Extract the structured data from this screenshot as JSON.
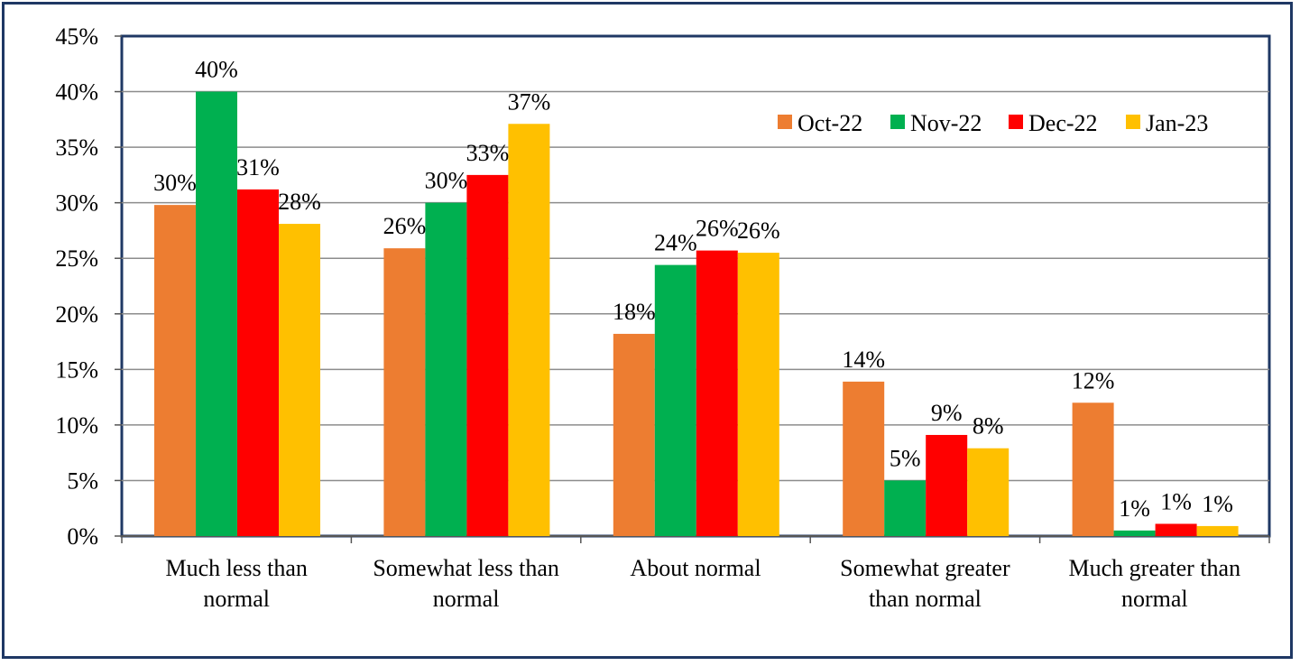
{
  "chart_data": {
    "type": "bar",
    "title": "",
    "xlabel": "",
    "ylabel": "",
    "ylim": [
      0,
      45
    ],
    "yticks": [
      "0%",
      "5%",
      "10%",
      "15%",
      "20%",
      "25%",
      "30%",
      "35%",
      "40%",
      "45%"
    ],
    "grid": true,
    "legend_position": "top-right",
    "categories": [
      [
        "Much less than",
        "normal"
      ],
      [
        "Somewhat less than",
        "normal"
      ],
      [
        "About normal"
      ],
      [
        "Somewhat greater",
        "than normal"
      ],
      [
        "Much greater than",
        "normal"
      ]
    ],
    "series": [
      {
        "name": "Oct-22",
        "color": "#ed7d31",
        "values": [
          29.8,
          25.9,
          18.2,
          13.9,
          12.0
        ],
        "labels": [
          "30%",
          "26%",
          "18%",
          "14%",
          "12%"
        ]
      },
      {
        "name": "Nov-22",
        "color": "#00b050",
        "values": [
          40.0,
          30.0,
          24.4,
          5.0,
          0.5
        ],
        "labels": [
          "40%",
          "30%",
          "24%",
          "5%",
          "1%"
        ]
      },
      {
        "name": "Dec-22",
        "color": "#ff0000",
        "values": [
          31.2,
          32.5,
          25.7,
          9.1,
          1.1
        ],
        "labels": [
          "31%",
          "33%",
          "26%",
          "9%",
          "1%"
        ]
      },
      {
        "name": "Jan-23",
        "color": "#ffc000",
        "values": [
          28.1,
          37.1,
          25.5,
          7.9,
          0.9
        ],
        "labels": [
          "28%",
          "37%",
          "26%",
          "8%",
          "1%"
        ]
      }
    ]
  }
}
